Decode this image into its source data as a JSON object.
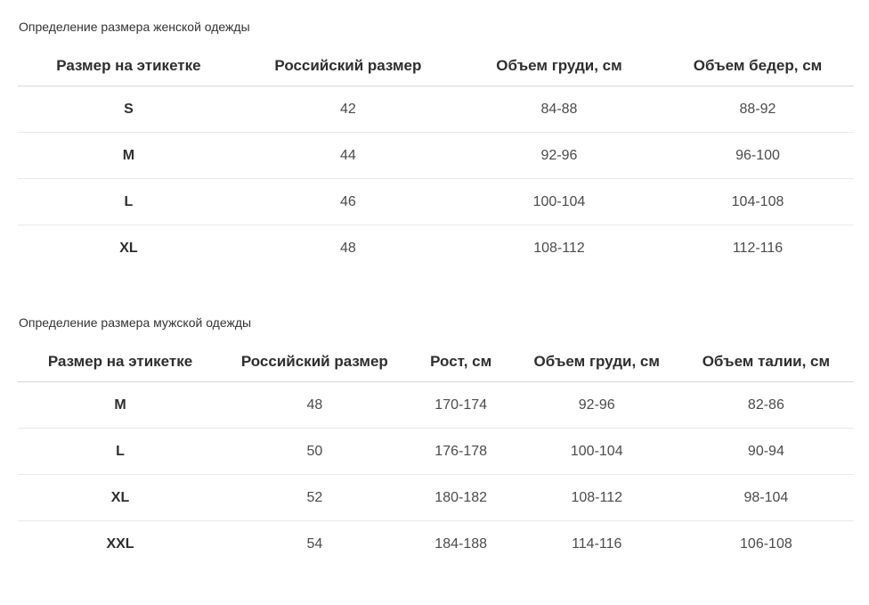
{
  "colors": {
    "background": "#ffffff",
    "header_border": "#d6d6d6",
    "row_border": "#e9e9e9",
    "header_text": "#2e2e2e",
    "cell_text": "#4b4b4b",
    "title_text": "#333333"
  },
  "women_table": {
    "title": "Определение размера женской одежды",
    "columns": [
      "Размер на этикетке",
      "Российский размер",
      "Объем груди, см",
      "Объем бедер, см"
    ],
    "rows": [
      {
        "label": "S",
        "russian": "42",
        "chest": "84-88",
        "hips": "88-92"
      },
      {
        "label": "M",
        "russian": "44",
        "chest": "92-96",
        "hips": "96-100"
      },
      {
        "label": "L",
        "russian": "46",
        "chest": "100-104",
        "hips": "104-108"
      },
      {
        "label": "XL",
        "russian": "48",
        "chest": "108-112",
        "hips": "112-116"
      }
    ]
  },
  "men_table": {
    "title": "Определение размера мужской одежды",
    "columns": [
      "Размер на этикетке",
      "Российский размер",
      "Рост, см",
      "Объем груди, см",
      "Объем талии, см"
    ],
    "rows": [
      {
        "label": "M",
        "russian": "48",
        "height": "170-174",
        "chest": "92-96",
        "waist": "82-86"
      },
      {
        "label": "L",
        "russian": "50",
        "height": "176-178",
        "chest": "100-104",
        "waist": "90-94"
      },
      {
        "label": "XL",
        "russian": "52",
        "height": "180-182",
        "chest": "108-112",
        "waist": "98-104"
      },
      {
        "label": "XXL",
        "russian": "54",
        "height": "184-188",
        "chest": "114-116",
        "waist": "106-108"
      }
    ]
  }
}
